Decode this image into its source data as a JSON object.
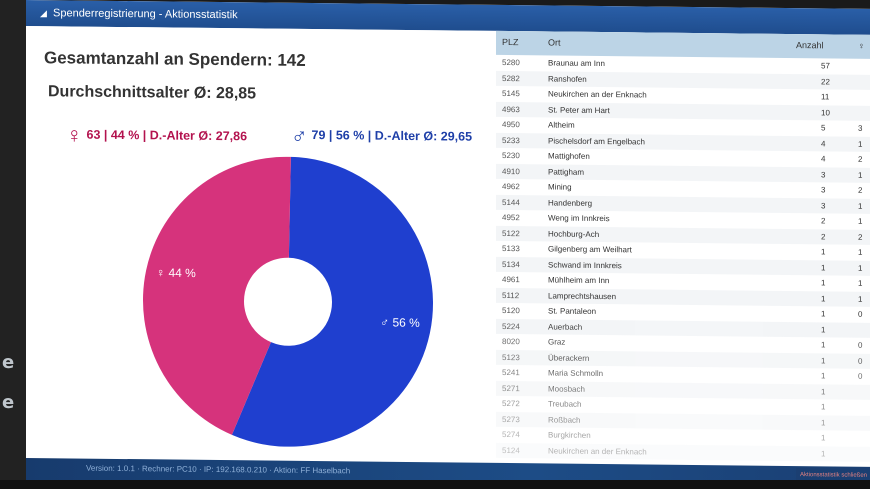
{
  "window": {
    "title": "Spenderregistrierung - Aktionsstatistik"
  },
  "summary": {
    "total_label": "Gesamtanzahl an Spendern: 142",
    "avg_age_label": "Durchschnittsalter Ø: 28,85",
    "female_symbol": "♀",
    "female_text": "63 | 44 % | D.-Alter Ø: 27,86",
    "male_symbol": "♂",
    "male_text": "79 | 56 % | D.-Alter Ø: 29,65"
  },
  "chart_data": {
    "type": "pie",
    "style": "donut",
    "slices": [
      {
        "label": "♂ 56 %",
        "value": 56,
        "color": "#1f3fcf"
      },
      {
        "label": "♀ 44 %",
        "value": 44,
        "color": "#d6337c"
      }
    ]
  },
  "table": {
    "headers": {
      "plz": "PLZ",
      "ort": "Ort",
      "anzahl": "Anzahl",
      "extra": "♀"
    },
    "rows": [
      {
        "plz": "5280",
        "ort": "Braunau am Inn",
        "anzahl": "57",
        "extra": ""
      },
      {
        "plz": "5282",
        "ort": "Ranshofen",
        "anzahl": "22",
        "extra": ""
      },
      {
        "plz": "5145",
        "ort": "Neukirchen an der Enknach",
        "anzahl": "11",
        "extra": ""
      },
      {
        "plz": "4963",
        "ort": "St. Peter am Hart",
        "anzahl": "10",
        "extra": ""
      },
      {
        "plz": "4950",
        "ort": "Altheim",
        "anzahl": "5",
        "extra": "3"
      },
      {
        "plz": "5233",
        "ort": "Pischelsdorf am Engelbach",
        "anzahl": "4",
        "extra": "1"
      },
      {
        "plz": "5230",
        "ort": "Mattighofen",
        "anzahl": "4",
        "extra": "2"
      },
      {
        "plz": "4910",
        "ort": "Pattigham",
        "anzahl": "3",
        "extra": "1"
      },
      {
        "plz": "4962",
        "ort": "Mining",
        "anzahl": "3",
        "extra": "2"
      },
      {
        "plz": "5144",
        "ort": "Handenberg",
        "anzahl": "3",
        "extra": "1"
      },
      {
        "plz": "4952",
        "ort": "Weng im Innkreis",
        "anzahl": "2",
        "extra": "1"
      },
      {
        "plz": "5122",
        "ort": "Hochburg-Ach",
        "anzahl": "2",
        "extra": "2"
      },
      {
        "plz": "5133",
        "ort": "Gilgenberg am Weilhart",
        "anzahl": "1",
        "extra": "1"
      },
      {
        "plz": "5134",
        "ort": "Schwand im Innkreis",
        "anzahl": "1",
        "extra": "1"
      },
      {
        "plz": "4961",
        "ort": "Mühlheim am Inn",
        "anzahl": "1",
        "extra": "1"
      },
      {
        "plz": "5112",
        "ort": "Lamprechtshausen",
        "anzahl": "1",
        "extra": "1"
      },
      {
        "plz": "5120",
        "ort": "St. Pantaleon",
        "anzahl": "1",
        "extra": "0"
      },
      {
        "plz": "5224",
        "ort": "Auerbach",
        "anzahl": "1",
        "extra": ""
      },
      {
        "plz": "8020",
        "ort": "Graz",
        "anzahl": "1",
        "extra": "0"
      },
      {
        "plz": "5123",
        "ort": "Überackern",
        "anzahl": "1",
        "extra": "0"
      },
      {
        "plz": "5241",
        "ort": "Maria Schmolln",
        "anzahl": "1",
        "extra": "0"
      },
      {
        "plz": "5271",
        "ort": "Moosbach",
        "anzahl": "1",
        "extra": ""
      },
      {
        "plz": "5272",
        "ort": "Treubach",
        "anzahl": "1",
        "extra": ""
      },
      {
        "plz": "5273",
        "ort": "Roßbach",
        "anzahl": "1",
        "extra": ""
      },
      {
        "plz": "5274",
        "ort": "Burgkirchen",
        "anzahl": "1",
        "extra": ""
      },
      {
        "plz": "5124",
        "ort": "Neukirchen an der Enknach",
        "anzahl": "1",
        "extra": ""
      }
    ]
  },
  "footer": {
    "status": "Version: 1.0.1 · Rechner: PC10 · IP: 192.168.0.210 · Aktion: FF Haselbach",
    "stats_button": "Aktionsstatistik schließen"
  },
  "colors": {
    "female": "#b3124e",
    "male": "#1e3fa8",
    "titlebar": "#2a5fa8",
    "header": "#bcd4e6"
  }
}
